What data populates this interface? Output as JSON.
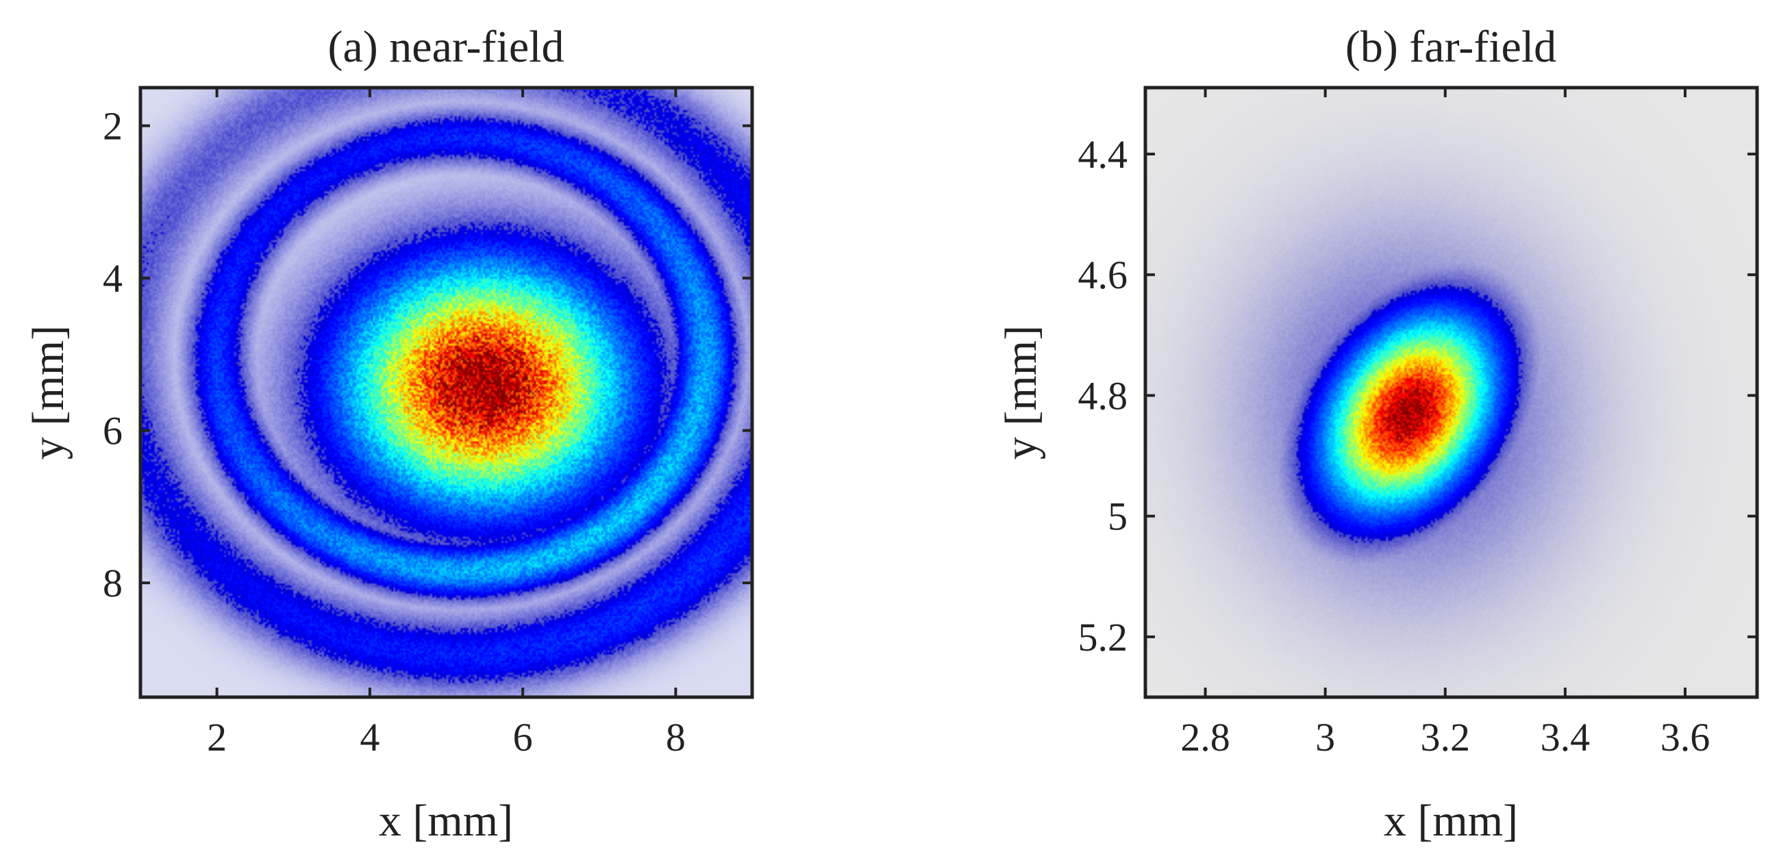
{
  "figure": {
    "panels": [
      {
        "title": "(a) near-field",
        "xlabel": "x [mm]",
        "ylabel": "y [mm]",
        "xlim": [
          1,
          9
        ],
        "ylim": [
          1.5,
          9.5
        ],
        "y_inverted": true,
        "xticks": [
          "2",
          "4",
          "6",
          "8"
        ],
        "yticks": [
          "2",
          "4",
          "6",
          "8"
        ]
      },
      {
        "title": "(b) far-field",
        "xlabel": "x [mm]",
        "ylabel": "y [mm]",
        "xlim": [
          2.7,
          3.72
        ],
        "ylim": [
          4.29,
          5.3
        ],
        "y_inverted": true,
        "xticks": [
          "2.8",
          "3",
          "3.2",
          "3.4",
          "3.6"
        ],
        "yticks": [
          "4.4",
          "4.6",
          "4.8",
          "5",
          "5.2"
        ]
      }
    ]
  },
  "chart_data": [
    {
      "type": "heatmap",
      "title": "(a) near-field",
      "xlabel": "x [mm]",
      "ylabel": "y [mm]",
      "xlim": [
        1,
        9
      ],
      "ylim": [
        9.5,
        1.5
      ],
      "x_ticks": [
        2,
        4,
        6,
        8
      ],
      "y_ticks": [
        2,
        4,
        6,
        8
      ],
      "colormap": "jet (low values near white)",
      "intensity_features": {
        "peak_center": [
          5.5,
          5.4
        ],
        "core_radius_x": 1.9,
        "core_radius_y": 1.65,
        "rings": [
          {
            "center": [
              5.2,
              5.0
            ],
            "radius_x": 3.2,
            "radius_y": 2.85,
            "relative_intensity": 0.35
          },
          {
            "center": [
              5.2,
              5.05
            ],
            "radius_x": 4.4,
            "radius_y": 3.9,
            "relative_intensity": 0.2
          }
        ]
      }
    },
    {
      "type": "heatmap",
      "title": "(b) far-field",
      "xlabel": "x [mm]",
      "ylabel": "y [mm]",
      "xlim": [
        2.7,
        3.72
      ],
      "ylim": [
        5.3,
        4.29
      ],
      "x_ticks": [
        2.8,
        3.0,
        3.2,
        3.4,
        3.6
      ],
      "y_ticks": [
        4.4,
        4.6,
        4.8,
        5.0,
        5.2
      ],
      "colormap": "jet (low values light gray)",
      "intensity_features": {
        "peak_center": [
          3.14,
          4.83
        ],
        "core_radius_x": 0.14,
        "core_radius_y": 0.2,
        "halo_radius_x": 0.38,
        "halo_radius_y": 0.42
      }
    }
  ],
  "colors": {
    "near_field_background": "#dadcf2",
    "far_field_background": "#e6e6e6",
    "axes": "#222222",
    "jet_low": "#00008f",
    "jet_high": "#800000"
  }
}
